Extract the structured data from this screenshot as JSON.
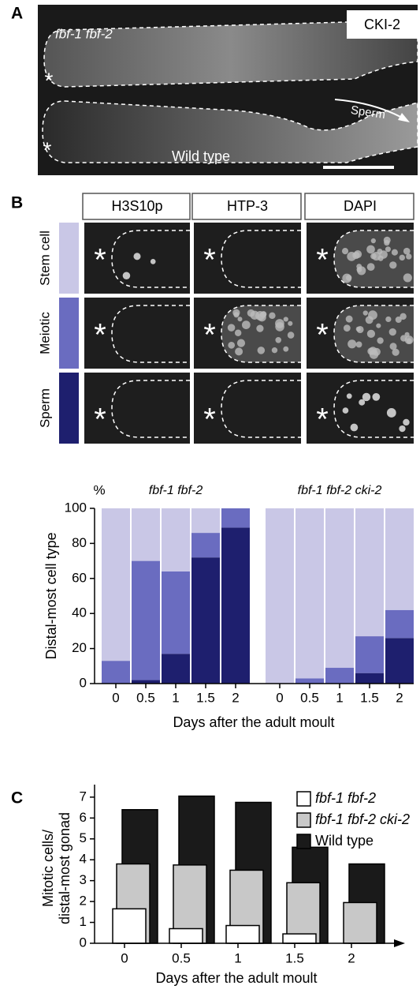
{
  "distal_marker": "*",
  "panel_a": {
    "label": "A",
    "genotype": "fbf-1 fbf-2",
    "stain": "CKI-2",
    "arrow_label": "Sperm",
    "wild_type": "Wild type"
  },
  "panel_b": {
    "label": "B",
    "columns": [
      "H3S10p",
      "HTP-3",
      "DAPI"
    ]
  },
  "panel_c": {
    "label": "C"
  },
  "chart_data": [
    {
      "type": "stacked_bar",
      "y_unit": "%",
      "ylabel": "Distal-most cell type",
      "xlabel": "Days after the adult moult",
      "group_labels": [
        "fbf-1 fbf-2",
        "fbf-1 fbf-2 cki-2"
      ],
      "categories": [
        "0",
        "0.5",
        "1",
        "1.5",
        "2",
        "0",
        "0.5",
        "1",
        "1.5",
        "2"
      ],
      "series": [
        {
          "name": "Sperm",
          "color": "#1e1f6e",
          "values": [
            0,
            2,
            17,
            72,
            89,
            0,
            0,
            0,
            6,
            26
          ]
        },
        {
          "name": "Meiotic",
          "color": "#6a6cc0",
          "values": [
            13,
            68,
            47,
            14,
            11,
            0,
            3,
            9,
            21,
            16
          ]
        },
        {
          "name": "Stem cell",
          "color": "#c9c7e6",
          "values": [
            87,
            30,
            36,
            14,
            0,
            100,
            97,
            91,
            73,
            58
          ]
        }
      ],
      "ylim": [
        0,
        100
      ],
      "yticks": [
        0,
        20,
        40,
        60,
        80,
        100
      ]
    },
    {
      "type": "overlap_bar",
      "ylabel": [
        "Mitotic cells/",
        "distal-most gonad"
      ],
      "xlabel": "Days after the adult moult",
      "categories": [
        "0",
        "0.5",
        "1",
        "1.5",
        "2"
      ],
      "series": [
        {
          "name": "fbf-1 fbf-2",
          "color": "#ffffff",
          "values": [
            1.65,
            0.7,
            0.85,
            0.45,
            null
          ]
        },
        {
          "name": "fbf-1 fbf-2 cki-2",
          "color": "#c8c8c8",
          "values": [
            3.8,
            3.75,
            3.5,
            2.9,
            1.95
          ]
        },
        {
          "name": "Wild type",
          "color": "#1a1a1a",
          "values": [
            6.4,
            7.05,
            6.75,
            4.6,
            3.8
          ]
        }
      ],
      "ylim": [
        0,
        7.6
      ],
      "yticks": [
        0,
        1,
        2,
        3,
        4,
        5,
        6,
        7
      ]
    }
  ]
}
